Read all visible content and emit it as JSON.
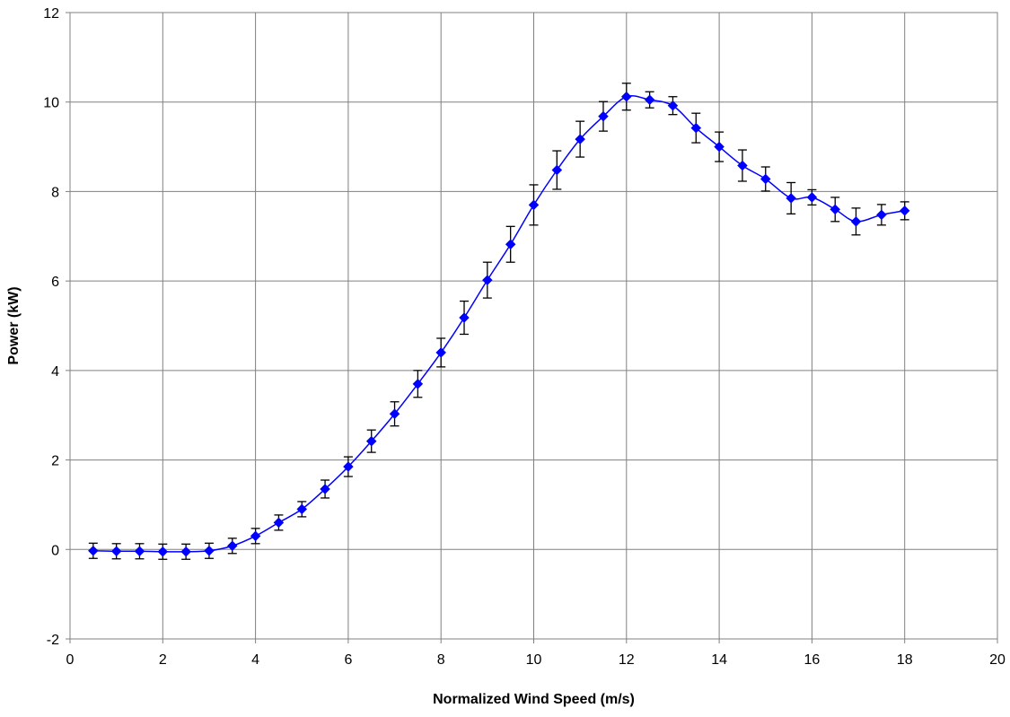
{
  "chart_data": {
    "type": "scatter",
    "title": "",
    "xlabel": "Normalized Wind Speed (m/s)",
    "ylabel": "Power (kW)",
    "xlim": [
      0,
      20
    ],
    "ylim": [
      -2,
      12
    ],
    "xticks": [
      0,
      2,
      4,
      6,
      8,
      10,
      12,
      14,
      16,
      18,
      20
    ],
    "yticks": [
      -2,
      0,
      2,
      4,
      6,
      8,
      10,
      12
    ],
    "grid": true,
    "legend": "none",
    "line_style": "smoothed line with diamond markers and vertical error bars",
    "series_color": "#0000ff",
    "error_bar_color": "#000000",
    "grid_color": "#808080",
    "series": [
      {
        "x": [
          0.5,
          1.0,
          1.5,
          2.0,
          2.5,
          3.0,
          3.5,
          4.0,
          4.5,
          5.0,
          5.5,
          6.0,
          6.5,
          7.0,
          7.5,
          8.0,
          8.5,
          9.0,
          9.5,
          10.0,
          10.5,
          11.0,
          11.5,
          12.0,
          12.5,
          13.0,
          13.5,
          14.0,
          14.5,
          15.0,
          15.55,
          16.0,
          16.5,
          16.95,
          17.5,
          18.0
        ],
        "y": [
          -0.03,
          -0.04,
          -0.04,
          -0.05,
          -0.05,
          -0.03,
          0.08,
          0.3,
          0.6,
          0.9,
          1.35,
          1.85,
          2.42,
          3.03,
          3.7,
          4.4,
          5.18,
          6.02,
          6.82,
          7.7,
          8.48,
          9.17,
          9.68,
          10.12,
          10.05,
          9.92,
          9.42,
          9.0,
          8.58,
          8.28,
          7.85,
          7.87,
          7.6,
          7.33,
          7.48,
          7.57
        ],
        "err": [
          0.17,
          0.17,
          0.17,
          0.17,
          0.17,
          0.17,
          0.17,
          0.17,
          0.17,
          0.17,
          0.2,
          0.22,
          0.25,
          0.27,
          0.3,
          0.32,
          0.37,
          0.4,
          0.4,
          0.45,
          0.43,
          0.4,
          0.33,
          0.3,
          0.18,
          0.2,
          0.33,
          0.33,
          0.35,
          0.27,
          0.35,
          0.17,
          0.27,
          0.3,
          0.23,
          0.2
        ]
      }
    ]
  }
}
